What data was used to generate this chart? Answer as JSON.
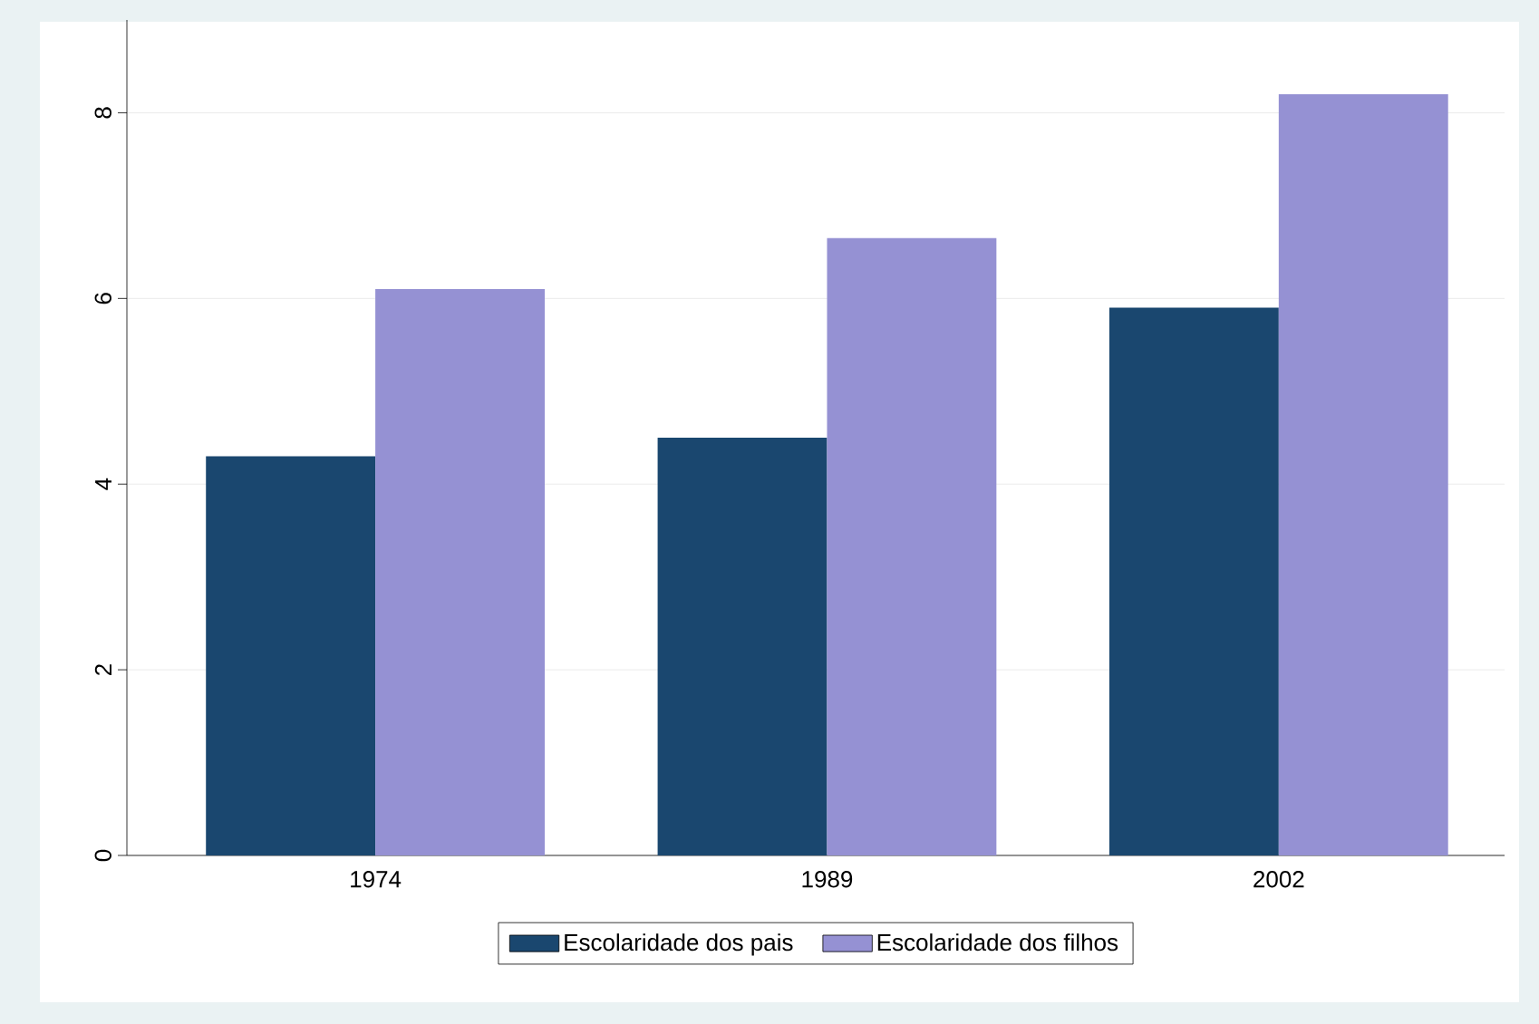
{
  "chart_data": {
    "type": "bar",
    "categories": [
      "1974",
      "1989",
      "2002"
    ],
    "series": [
      {
        "name": "Escolaridade dos pais",
        "color": "#1a476f",
        "values": [
          4.3,
          4.5,
          5.9
        ]
      },
      {
        "name": "Escolaridade dos filhos",
        "color": "#9591d3",
        "values": [
          6.1,
          6.65,
          8.2
        ]
      }
    ],
    "ylim": [
      0,
      9
    ],
    "yticks": [
      0,
      2,
      4,
      6,
      8
    ],
    "grid": "y",
    "legend": "bottom"
  }
}
